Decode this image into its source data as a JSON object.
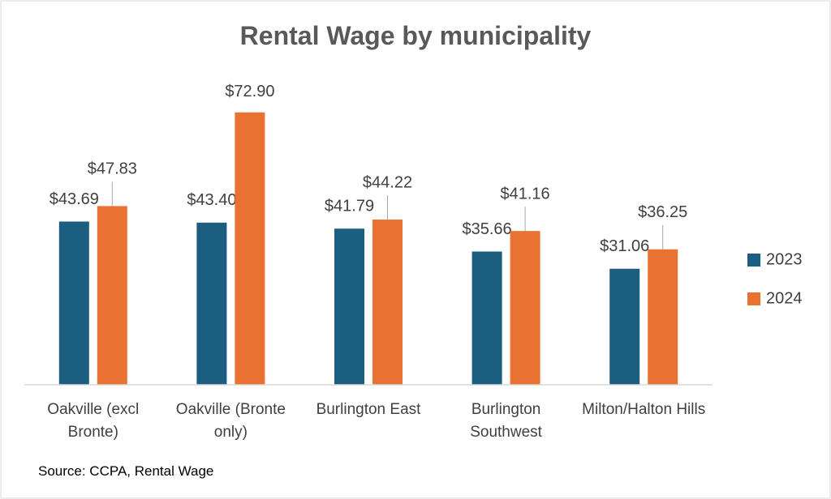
{
  "chart_data": {
    "type": "bar",
    "title": "Rental Wage by municipality",
    "categories": [
      "Oakville (excl Bronte)",
      "Oakville (Bronte only)",
      "Burlington East",
      "Burlington Southwest",
      "Milton/Halton Hills"
    ],
    "series": [
      {
        "name": "2023",
        "color": "#1b5e80",
        "values": [
          43.69,
          43.4,
          41.79,
          35.66,
          31.06
        ],
        "value_labels": [
          "$43.69",
          "$43.40",
          "$41.79",
          "$35.66",
          "$31.06"
        ]
      },
      {
        "name": "2024",
        "color": "#e97132",
        "values": [
          47.83,
          72.9,
          44.22,
          41.16,
          36.25
        ],
        "value_labels": [
          "$47.83",
          "$72.90",
          "$44.22",
          "$41.16",
          "$36.25"
        ]
      }
    ],
    "ylim": [
      0,
      80
    ],
    "legend": "right",
    "source": "Source: CCPA, Rental Wage"
  }
}
